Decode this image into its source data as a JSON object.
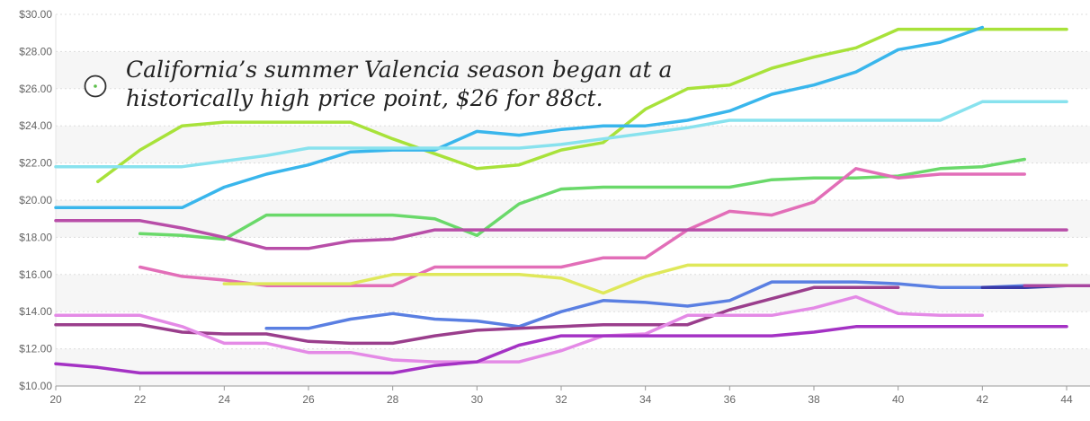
{
  "chart_data": {
    "type": "line",
    "title": "",
    "xlabel": "",
    "ylabel": "",
    "xlim": [
      20,
      44.6
    ],
    "ylim": [
      10,
      30
    ],
    "x_ticks": [
      20,
      22,
      24,
      26,
      28,
      30,
      32,
      34,
      36,
      38,
      40,
      42,
      44
    ],
    "y_ticks": [
      "$10.00",
      "$12.00",
      "$14.00",
      "$16.00",
      "$18.00",
      "$20.00",
      "$22.00",
      "$24.00",
      "$26.00",
      "$28.00",
      "$30.00"
    ],
    "y_tick_values": [
      10,
      12,
      14,
      16,
      18,
      20,
      22,
      24,
      26,
      28,
      30
    ],
    "grid": true,
    "annotation": "California’s summer Valencia season began at a historically high price point, $26 for 88ct.",
    "annotation_icon": "circle-dot-icon",
    "series": [
      {
        "color": "#a8e23a",
        "points": [
          [
            21,
            21.0
          ],
          [
            22,
            22.7
          ],
          [
            23,
            24.0
          ],
          [
            24,
            24.2
          ],
          [
            25,
            24.2
          ],
          [
            26,
            24.2
          ],
          [
            27,
            24.2
          ],
          [
            28,
            23.3
          ],
          [
            29,
            22.5
          ],
          [
            30,
            21.7
          ],
          [
            31,
            21.9
          ],
          [
            32,
            22.7
          ],
          [
            33,
            23.1
          ],
          [
            34,
            24.9
          ],
          [
            35,
            26.0
          ],
          [
            36,
            26.2
          ],
          [
            37,
            27.1
          ],
          [
            38,
            27.7
          ],
          [
            39,
            28.2
          ],
          [
            40,
            29.2
          ],
          [
            41,
            29.2
          ],
          [
            42,
            29.2
          ],
          [
            43,
            29.2
          ],
          [
            44,
            29.2
          ]
        ]
      },
      {
        "color": "#39b6ec",
        "points": [
          [
            20,
            19.6
          ],
          [
            21,
            19.6
          ],
          [
            22,
            19.6
          ],
          [
            23,
            19.6
          ],
          [
            24,
            20.7
          ],
          [
            25,
            21.4
          ],
          [
            26,
            21.9
          ],
          [
            27,
            22.6
          ],
          [
            28,
            22.7
          ],
          [
            29,
            22.7
          ],
          [
            30,
            23.7
          ],
          [
            31,
            23.5
          ],
          [
            32,
            23.8
          ],
          [
            33,
            24.0
          ],
          [
            34,
            24.0
          ],
          [
            35,
            24.3
          ],
          [
            36,
            24.8
          ],
          [
            37,
            25.7
          ],
          [
            38,
            26.2
          ],
          [
            39,
            26.9
          ],
          [
            40,
            28.1
          ],
          [
            41,
            28.5
          ],
          [
            42,
            29.3
          ]
        ]
      },
      {
        "color": "#88e2ee",
        "points": [
          [
            20,
            21.8
          ],
          [
            21,
            21.8
          ],
          [
            22,
            21.8
          ],
          [
            23,
            21.8
          ],
          [
            24,
            22.1
          ],
          [
            25,
            22.4
          ],
          [
            26,
            22.8
          ],
          [
            27,
            22.8
          ],
          [
            28,
            22.8
          ],
          [
            29,
            22.8
          ],
          [
            30,
            22.8
          ],
          [
            31,
            22.8
          ],
          [
            32,
            23.0
          ],
          [
            33,
            23.3
          ],
          [
            34,
            23.6
          ],
          [
            35,
            23.9
          ],
          [
            36,
            24.3
          ],
          [
            37,
            24.3
          ],
          [
            38,
            24.3
          ],
          [
            39,
            24.3
          ],
          [
            40,
            24.3
          ],
          [
            41,
            24.3
          ],
          [
            42,
            25.3
          ],
          [
            43,
            25.3
          ],
          [
            44,
            25.3
          ]
        ]
      },
      {
        "color": "#6ad96a",
        "points": [
          [
            22,
            18.2
          ],
          [
            23,
            18.1
          ],
          [
            24,
            17.9
          ],
          [
            25,
            19.2
          ],
          [
            26,
            19.2
          ],
          [
            27,
            19.2
          ],
          [
            28,
            19.2
          ],
          [
            29,
            19.0
          ],
          [
            30,
            18.1
          ],
          [
            31,
            19.8
          ],
          [
            32,
            20.6
          ],
          [
            33,
            20.7
          ],
          [
            34,
            20.7
          ],
          [
            35,
            20.7
          ],
          [
            36,
            20.7
          ],
          [
            37,
            21.1
          ],
          [
            38,
            21.2
          ],
          [
            39,
            21.2
          ],
          [
            40,
            21.3
          ],
          [
            41,
            21.7
          ],
          [
            42,
            21.8
          ],
          [
            43,
            22.2
          ]
        ]
      },
      {
        "color": "#e26eb8",
        "points": [
          [
            22,
            16.4
          ],
          [
            23,
            15.9
          ],
          [
            24,
            15.7
          ],
          [
            25,
            15.4
          ],
          [
            26,
            15.4
          ],
          [
            27,
            15.4
          ],
          [
            28,
            15.4
          ],
          [
            29,
            16.4
          ],
          [
            30,
            16.4
          ],
          [
            31,
            16.4
          ],
          [
            32,
            16.4
          ],
          [
            33,
            16.9
          ],
          [
            34,
            16.9
          ],
          [
            35,
            18.4
          ],
          [
            36,
            19.4
          ],
          [
            37,
            19.2
          ],
          [
            38,
            19.9
          ],
          [
            39,
            21.7
          ],
          [
            40,
            21.2
          ],
          [
            41,
            21.4
          ],
          [
            42,
            21.4
          ],
          [
            43,
            21.4
          ]
        ]
      },
      {
        "color": "#b84ea8",
        "points": [
          [
            20,
            18.9
          ],
          [
            21,
            18.9
          ],
          [
            22,
            18.9
          ],
          [
            23,
            18.5
          ],
          [
            24,
            18.0
          ],
          [
            25,
            17.4
          ],
          [
            26,
            17.4
          ],
          [
            27,
            17.8
          ],
          [
            28,
            17.9
          ],
          [
            29,
            18.4
          ],
          [
            30,
            18.4
          ],
          [
            31,
            18.4
          ],
          [
            32,
            18.4
          ],
          [
            33,
            18.4
          ],
          [
            34,
            18.4
          ],
          [
            35,
            18.4
          ],
          [
            36,
            18.4
          ],
          [
            37,
            18.4
          ],
          [
            38,
            18.4
          ],
          [
            39,
            18.4
          ],
          [
            40,
            18.4
          ],
          [
            41,
            18.4
          ],
          [
            42,
            18.4
          ],
          [
            43,
            18.4
          ],
          [
            44,
            18.4
          ]
        ]
      },
      {
        "color": "#dfe85a",
        "points": [
          [
            24,
            15.5
          ],
          [
            25,
            15.5
          ],
          [
            26,
            15.5
          ],
          [
            27,
            15.5
          ],
          [
            28,
            16.0
          ],
          [
            29,
            16.0
          ],
          [
            30,
            16.0
          ],
          [
            31,
            16.0
          ],
          [
            32,
            15.8
          ],
          [
            33,
            15.0
          ],
          [
            34,
            15.9
          ],
          [
            35,
            16.5
          ],
          [
            36,
            16.5
          ],
          [
            37,
            16.5
          ],
          [
            38,
            16.5
          ],
          [
            39,
            16.5
          ],
          [
            40,
            16.5
          ],
          [
            41,
            16.5
          ],
          [
            42,
            16.5
          ],
          [
            43,
            16.5
          ],
          [
            44,
            16.5
          ]
        ]
      },
      {
        "color": "#5a7fe2",
        "points": [
          [
            25,
            13.1
          ],
          [
            26,
            13.1
          ],
          [
            27,
            13.6
          ],
          [
            28,
            13.9
          ],
          [
            29,
            13.6
          ],
          [
            30,
            13.5
          ],
          [
            31,
            13.2
          ],
          [
            32,
            14.0
          ],
          [
            33,
            14.6
          ],
          [
            34,
            14.5
          ],
          [
            35,
            14.3
          ],
          [
            36,
            14.6
          ],
          [
            37,
            15.6
          ],
          [
            38,
            15.6
          ],
          [
            39,
            15.6
          ],
          [
            40,
            15.5
          ],
          [
            41,
            15.3
          ],
          [
            42,
            15.3
          ],
          [
            43,
            15.4
          ]
        ]
      },
      {
        "color": "#9a3e8c",
        "points": [
          [
            20,
            13.3
          ],
          [
            21,
            13.3
          ],
          [
            22,
            13.3
          ],
          [
            23,
            12.9
          ],
          [
            24,
            12.8
          ],
          [
            25,
            12.8
          ],
          [
            26,
            12.4
          ],
          [
            27,
            12.3
          ],
          [
            28,
            12.3
          ],
          [
            29,
            12.7
          ],
          [
            30,
            13.0
          ],
          [
            31,
            13.1
          ],
          [
            32,
            13.2
          ],
          [
            33,
            13.3
          ],
          [
            34,
            13.3
          ],
          [
            35,
            13.3
          ],
          [
            36,
            14.1
          ],
          [
            37,
            14.7
          ],
          [
            38,
            15.3
          ],
          [
            39,
            15.3
          ],
          [
            40,
            15.3
          ]
        ]
      },
      {
        "color": "#e48ae6",
        "points": [
          [
            20,
            13.8
          ],
          [
            21,
            13.8
          ],
          [
            22,
            13.8
          ],
          [
            23,
            13.2
          ],
          [
            24,
            12.3
          ],
          [
            25,
            12.3
          ],
          [
            26,
            11.8
          ],
          [
            27,
            11.8
          ],
          [
            28,
            11.4
          ],
          [
            29,
            11.3
          ],
          [
            30,
            11.3
          ],
          [
            31,
            11.3
          ],
          [
            32,
            11.9
          ],
          [
            33,
            12.7
          ],
          [
            34,
            12.8
          ],
          [
            35,
            13.8
          ],
          [
            36,
            13.8
          ],
          [
            37,
            13.8
          ],
          [
            38,
            14.2
          ],
          [
            39,
            14.8
          ],
          [
            40,
            13.9
          ],
          [
            41,
            13.8
          ],
          [
            42,
            13.8
          ]
        ]
      },
      {
        "color": "#a432c4",
        "points": [
          [
            20,
            11.2
          ],
          [
            21,
            11.0
          ],
          [
            22,
            10.7
          ],
          [
            23,
            10.7
          ],
          [
            24,
            10.7
          ],
          [
            25,
            10.7
          ],
          [
            26,
            10.7
          ],
          [
            27,
            10.7
          ],
          [
            28,
            10.7
          ],
          [
            29,
            11.1
          ],
          [
            30,
            11.3
          ],
          [
            31,
            12.2
          ],
          [
            32,
            12.7
          ],
          [
            33,
            12.7
          ],
          [
            34,
            12.7
          ],
          [
            35,
            12.7
          ],
          [
            36,
            12.7
          ],
          [
            37,
            12.7
          ],
          [
            38,
            12.9
          ],
          [
            39,
            13.2
          ],
          [
            40,
            13.2
          ],
          [
            41,
            13.2
          ],
          [
            42,
            13.2
          ],
          [
            43,
            13.2
          ],
          [
            44,
            13.2
          ]
        ]
      },
      {
        "color": "#3a3aa8",
        "points": [
          [
            42,
            15.3
          ],
          [
            43,
            15.3
          ],
          [
            44,
            15.4
          ],
          [
            44.6,
            15.4
          ]
        ]
      },
      {
        "color": "#a845a0",
        "points": [
          [
            43,
            15.4
          ],
          [
            44.6,
            15.4
          ]
        ]
      }
    ]
  }
}
